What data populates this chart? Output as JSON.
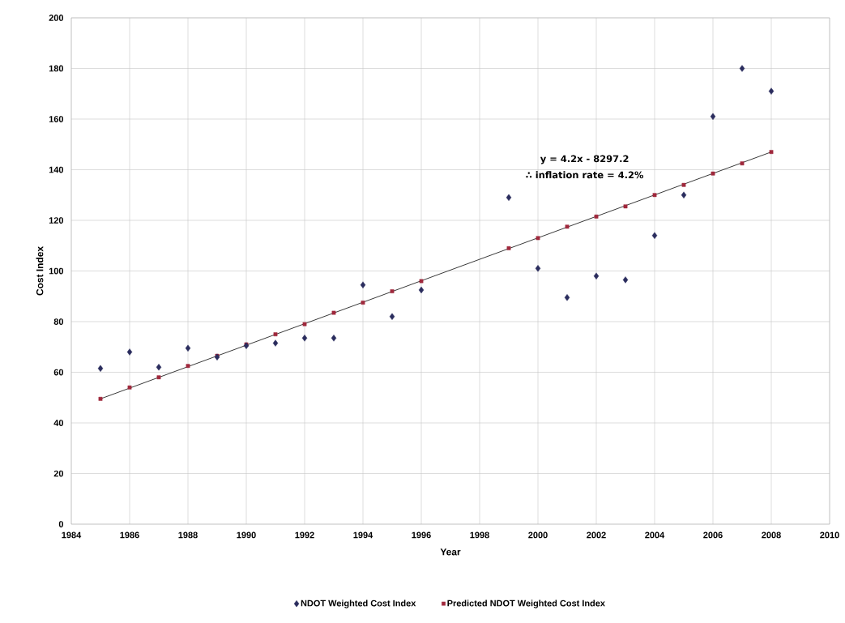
{
  "chart_data": {
    "type": "scatter",
    "xlabel": "Year",
    "ylabel": "Cost Index",
    "xlim": [
      1984,
      2010
    ],
    "xticks": [
      1984,
      1986,
      1988,
      1990,
      1992,
      1994,
      1996,
      1998,
      2000,
      2002,
      2004,
      2006,
      2008,
      2010
    ],
    "ylim": [
      0,
      200
    ],
    "yticks": [
      0,
      20,
      40,
      60,
      80,
      100,
      120,
      140,
      160,
      180,
      200
    ],
    "grid": true,
    "legend": "bottom",
    "annotations": [
      "y = 4.2x - 8297.2",
      "∴ inflation rate = 4.2%"
    ],
    "series": [
      {
        "name": "NDOT Weighted Cost Index",
        "color": "#2b2d5e",
        "marker": "diamond",
        "x": [
          1985,
          1986,
          1987,
          1988,
          1989,
          1990,
          1991,
          1992,
          1993,
          1994,
          1995,
          1996,
          1999,
          2000,
          2001,
          2002,
          2003,
          2004,
          2005,
          2006,
          2007,
          2008
        ],
        "values": [
          61.5,
          68,
          62,
          69.5,
          66,
          70.5,
          71.5,
          73.5,
          73.5,
          94.5,
          82,
          92.5,
          129,
          101,
          89.5,
          98,
          96.5,
          114,
          130,
          161,
          180,
          171
        ]
      },
      {
        "name": "Predicted NDOT Weighted Cost Index",
        "color": "#a0283c",
        "marker": "square",
        "x": [
          1985,
          1986,
          1987,
          1988,
          1989,
          1990,
          1991,
          1992,
          1993,
          1994,
          1995,
          1996,
          1999,
          2000,
          2001,
          2002,
          2003,
          2004,
          2005,
          2006,
          2007,
          2008
        ],
        "values": [
          49.5,
          54,
          58,
          62.5,
          66.5,
          71,
          75,
          79,
          83.5,
          87.5,
          92,
          96,
          109,
          113,
          117.5,
          121.5,
          125.5,
          130,
          134,
          138.5,
          142.5,
          147
        ]
      },
      {
        "type": "line",
        "color": "#222222",
        "marker": "none",
        "line_style": "solid",
        "x": [
          1985,
          2008
        ],
        "values": [
          49.5,
          147
        ]
      }
    ]
  }
}
